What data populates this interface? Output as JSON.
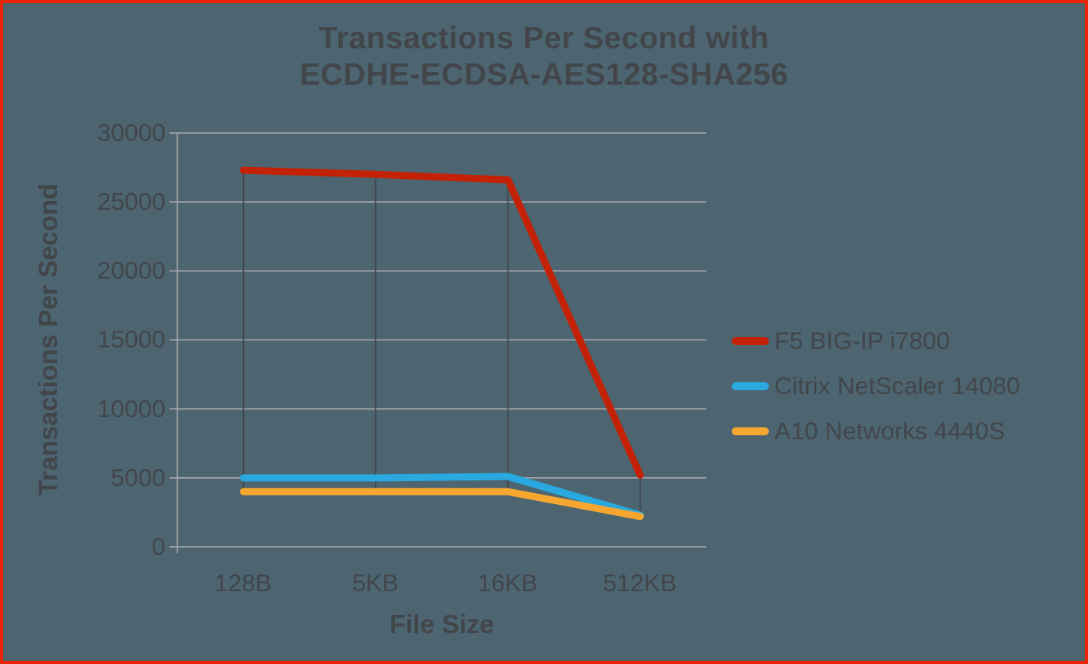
{
  "title": {
    "line1": "Transactions Per Second with",
    "line2": "ECDHE-ECDSA-AES128-SHA256"
  },
  "chart_data": {
    "type": "line",
    "title": "Transactions Per Second with ECDHE-ECDSA-AES128-SHA256",
    "xlabel": "File Size",
    "ylabel": "Transactions Per Second",
    "categories": [
      "128B",
      "5KB",
      "16KB",
      "512KB"
    ],
    "series": [
      {
        "name": "F5 BIG-IP i7800",
        "color": "#C32206",
        "values": [
          27300,
          27000,
          26600,
          5200
        ]
      },
      {
        "name": "Citrix NetScaler 14080",
        "color": "#29A9DF",
        "values": [
          5000,
          5000,
          5100,
          2300
        ]
      },
      {
        "name": "A10 Networks 4440S",
        "color": "#F7A72F",
        "values": [
          4000,
          4000,
          4000,
          2200
        ]
      }
    ],
    "ylim": [
      0,
      30000
    ],
    "ytick_step": 5000,
    "yticks": [
      "30000",
      "25000",
      "20000",
      "15000",
      "10000",
      "5000",
      "0"
    ],
    "grid": "horizontal",
    "high_low_lines": true,
    "legend_position": "right"
  },
  "colors": {
    "background": "#4D6570",
    "frame_border": "#EB2409",
    "text": "#42464B",
    "gridline": "#A7A9AC",
    "high_low_line": "#3F4347"
  }
}
